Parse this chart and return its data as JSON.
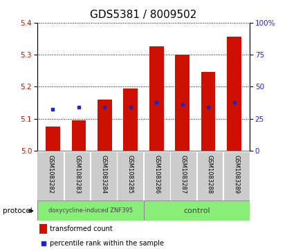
{
  "title": "GDS5381 / 8009502",
  "samples": [
    "GSM1083282",
    "GSM1083283",
    "GSM1083284",
    "GSM1083285",
    "GSM1083286",
    "GSM1083287",
    "GSM1083288",
    "GSM1083289"
  ],
  "bar_values": [
    5.075,
    5.095,
    5.16,
    5.195,
    5.325,
    5.3,
    5.245,
    5.355
  ],
  "bar_bottom": 5.0,
  "blue_dot_values": [
    5.13,
    5.135,
    5.135,
    5.135,
    5.15,
    5.145,
    5.135,
    5.15
  ],
  "ylim_left": [
    5.0,
    5.4
  ],
  "ylim_right": [
    0,
    100
  ],
  "yticks_left": [
    5.0,
    5.1,
    5.2,
    5.3,
    5.4
  ],
  "yticks_right": [
    0,
    25,
    50,
    75,
    100
  ],
  "bar_color": "#cc1100",
  "dot_color": "#2222cc",
  "group1_label": "doxycycline-induced ZNF395",
  "group2_label": "control",
  "protocol_label": "protocol",
  "legend_bar_label": "transformed count",
  "legend_dot_label": "percentile rank within the sample",
  "group_bg_color": "#88ee77",
  "tick_area_bg": "#cccccc",
  "fig_width": 4.15,
  "fig_height": 3.63,
  "title_fontsize": 11,
  "tick_fontsize": 7.5,
  "label_fontsize": 7.5
}
